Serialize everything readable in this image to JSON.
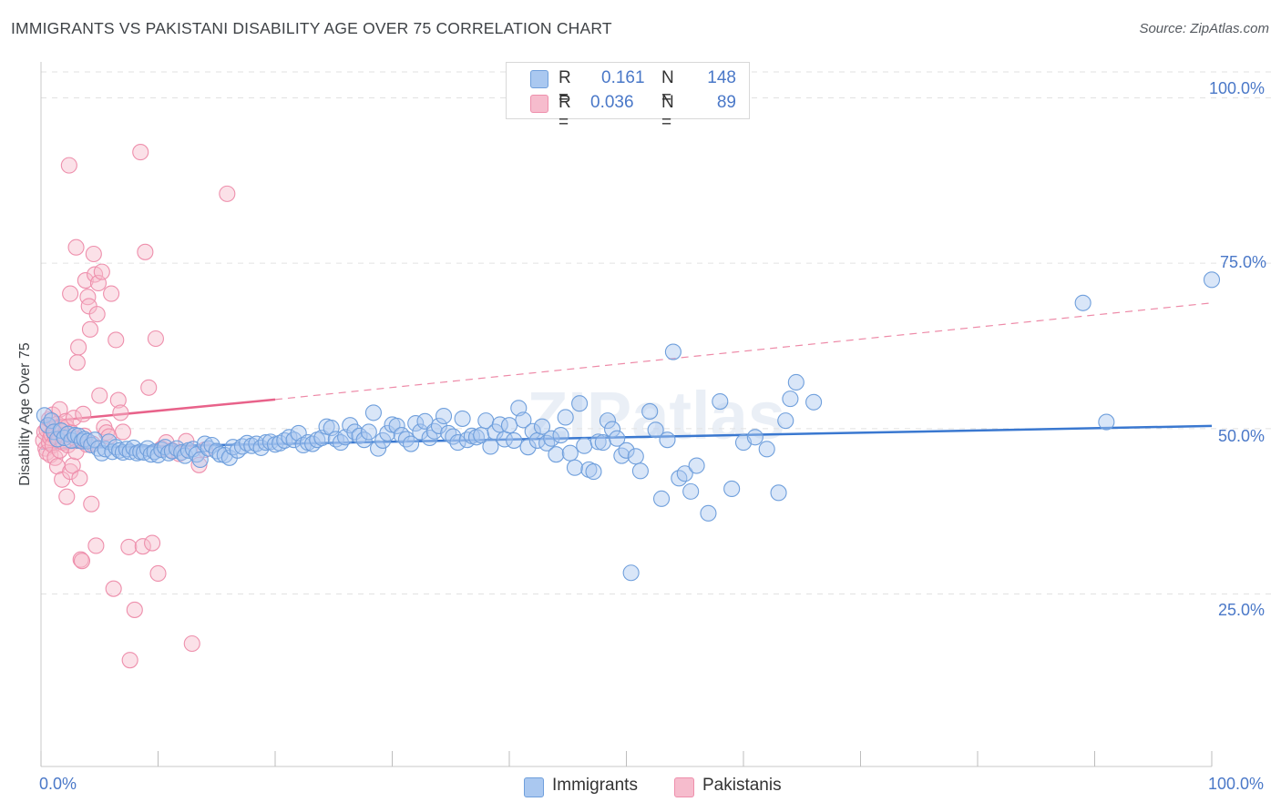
{
  "title": "IMMIGRANTS VS PAKISTANI DISABILITY AGE OVER 75 CORRELATION CHART",
  "source": "Source: ZipAtlas.com",
  "watermark": "ZIPatlas",
  "colors": {
    "immigrants_fill": "#aac8f0",
    "immigrants_stroke": "#6f9fdc",
    "immigrants_line": "#3a78d0",
    "pakistanis_fill": "#f6bccd",
    "pakistanis_stroke": "#ee8fac",
    "pakistanis_line": "#e8628a",
    "tick_text": "#4a78c8",
    "grid": "#e2e2e2"
  },
  "legend": {
    "immigrants": {
      "r_label": "R =",
      "r_value": "0.161",
      "n_label": "N =",
      "n_value": "148"
    },
    "pakistanis": {
      "r_label": "R =",
      "r_value": "0.036",
      "n_label": "N =",
      "n_value": "89"
    }
  },
  "bottom_legend": {
    "immigrants": "Immigrants",
    "pakistanis": "Pakistanis"
  },
  "chart_data": {
    "type": "scatter",
    "title": "IMMIGRANTS VS PAKISTANI DISABILITY AGE OVER 75 CORRELATION CHART",
    "xlabel": "",
    "ylabel": "Disability Age Over 75",
    "xlim": [
      0,
      100
    ],
    "ylim": [
      0,
      105
    ],
    "x_tick_labels": [
      "0.0%",
      "100.0%"
    ],
    "y_tick_labels": [
      "100.0%",
      "75.0%",
      "50.0%",
      "25.0%"
    ],
    "y_ticks": [
      100,
      75,
      50,
      25
    ],
    "grid": "horizontal dashed",
    "legend_position": "top-center",
    "series": [
      {
        "name": "Immigrants",
        "trendline": {
          "x": [
            0,
            100
          ],
          "y": [
            47.0,
            50.4
          ],
          "style": "solid"
        },
        "points": [
          [
            0.3,
            52.0
          ],
          [
            0.6,
            50.5
          ],
          [
            0.9,
            51.2
          ],
          [
            1.1,
            49.5
          ],
          [
            1.4,
            48.4
          ],
          [
            1.7,
            49.7
          ],
          [
            2.0,
            48.6
          ],
          [
            2.3,
            49.2
          ],
          [
            2.6,
            48.2
          ],
          [
            2.9,
            49.0
          ],
          [
            3.2,
            48.9
          ],
          [
            3.5,
            48.1
          ],
          [
            3.7,
            48.4
          ],
          [
            4.0,
            48.1
          ],
          [
            4.3,
            47.5
          ],
          [
            4.6,
            48.3
          ],
          [
            4.9,
            47.0
          ],
          [
            5.2,
            46.3
          ],
          [
            5.5,
            46.9
          ],
          [
            5.8,
            48.0
          ],
          [
            6.1,
            46.5
          ],
          [
            6.4,
            47.2
          ],
          [
            6.7,
            46.7
          ],
          [
            7.0,
            46.4
          ],
          [
            7.3,
            46.9
          ],
          [
            7.6,
            46.5
          ],
          [
            7.9,
            47.1
          ],
          [
            8.2,
            46.3
          ],
          [
            8.5,
            46.5
          ],
          [
            8.8,
            46.4
          ],
          [
            9.1,
            47.0
          ],
          [
            9.4,
            46.1
          ],
          [
            9.7,
            46.5
          ],
          [
            10.0,
            46.0
          ],
          [
            10.3,
            46.8
          ],
          [
            10.6,
            47.2
          ],
          [
            10.9,
            46.3
          ],
          [
            11.2,
            46.6
          ],
          [
            11.6,
            47.0
          ],
          [
            12.0,
            46.4
          ],
          [
            12.3,
            45.9
          ],
          [
            12.6,
            46.7
          ],
          [
            13.0,
            46.9
          ],
          [
            13.3,
            46.1
          ],
          [
            13.6,
            45.3
          ],
          [
            14.0,
            47.7
          ],
          [
            14.3,
            47.0
          ],
          [
            14.6,
            47.5
          ],
          [
            15.0,
            46.6
          ],
          [
            15.3,
            46.1
          ],
          [
            15.7,
            46.0
          ],
          [
            16.1,
            45.6
          ],
          [
            16.4,
            47.2
          ],
          [
            16.8,
            46.7
          ],
          [
            17.2,
            47.3
          ],
          [
            17.6,
            47.8
          ],
          [
            18.0,
            47.4
          ],
          [
            18.4,
            47.7
          ],
          [
            18.8,
            47.1
          ],
          [
            19.2,
            47.9
          ],
          [
            19.6,
            48.0
          ],
          [
            20.0,
            47.6
          ],
          [
            20.4,
            47.8
          ],
          [
            20.8,
            48.2
          ],
          [
            21.2,
            48.7
          ],
          [
            21.6,
            48.3
          ],
          [
            22.0,
            49.3
          ],
          [
            22.4,
            47.5
          ],
          [
            22.8,
            47.9
          ],
          [
            23.2,
            47.7
          ],
          [
            23.6,
            48.3
          ],
          [
            24.0,
            48.6
          ],
          [
            24.4,
            50.3
          ],
          [
            24.8,
            50.1
          ],
          [
            25.2,
            48.4
          ],
          [
            25.6,
            47.9
          ],
          [
            26.0,
            48.7
          ],
          [
            26.4,
            50.5
          ],
          [
            26.8,
            49.5
          ],
          [
            27.2,
            48.9
          ],
          [
            27.6,
            48.3
          ],
          [
            28.0,
            49.5
          ],
          [
            28.4,
            52.4
          ],
          [
            28.8,
            47.0
          ],
          [
            29.2,
            48.2
          ],
          [
            29.6,
            49.3
          ],
          [
            30.0,
            50.6
          ],
          [
            30.4,
            50.4
          ],
          [
            30.8,
            49.0
          ],
          [
            31.2,
            48.4
          ],
          [
            31.6,
            47.7
          ],
          [
            32.0,
            50.8
          ],
          [
            32.4,
            49.5
          ],
          [
            32.8,
            51.1
          ],
          [
            33.2,
            48.6
          ],
          [
            33.6,
            49.6
          ],
          [
            34.0,
            50.4
          ],
          [
            34.4,
            51.9
          ],
          [
            34.8,
            49.3
          ],
          [
            35.2,
            48.8
          ],
          [
            35.6,
            47.9
          ],
          [
            36.0,
            51.5
          ],
          [
            36.4,
            48.3
          ],
          [
            36.8,
            48.9
          ],
          [
            37.2,
            48.7
          ],
          [
            37.6,
            49.0
          ],
          [
            38.0,
            51.2
          ],
          [
            38.4,
            47.3
          ],
          [
            38.8,
            49.5
          ],
          [
            39.2,
            50.6
          ],
          [
            39.6,
            48.4
          ],
          [
            40.0,
            50.5
          ],
          [
            40.4,
            48.2
          ],
          [
            40.8,
            53.1
          ],
          [
            41.2,
            51.3
          ],
          [
            41.6,
            47.2
          ],
          [
            42.0,
            49.6
          ],
          [
            42.4,
            48.2
          ],
          [
            42.8,
            50.3
          ],
          [
            43.2,
            47.8
          ],
          [
            43.6,
            48.5
          ],
          [
            44.0,
            46.1
          ],
          [
            44.4,
            49.0
          ],
          [
            44.8,
            51.7
          ],
          [
            45.2,
            46.3
          ],
          [
            45.6,
            44.1
          ],
          [
            46.0,
            53.8
          ],
          [
            46.4,
            47.4
          ],
          [
            46.8,
            43.8
          ],
          [
            47.2,
            43.5
          ],
          [
            47.6,
            48.0
          ],
          [
            48.0,
            47.9
          ],
          [
            48.4,
            51.2
          ],
          [
            48.8,
            49.9
          ],
          [
            49.2,
            48.5
          ],
          [
            49.6,
            45.9
          ],
          [
            50.0,
            46.7
          ],
          [
            50.4,
            28.2
          ],
          [
            50.8,
            45.8
          ],
          [
            51.2,
            43.6
          ],
          [
            52.0,
            52.6
          ],
          [
            52.5,
            49.8
          ],
          [
            53.0,
            39.4
          ],
          [
            53.5,
            48.3
          ],
          [
            54.0,
            61.6
          ],
          [
            54.5,
            42.5
          ],
          [
            55.0,
            43.2
          ],
          [
            55.5,
            40.5
          ],
          [
            56.0,
            44.4
          ],
          [
            57.0,
            37.2
          ],
          [
            58.0,
            54.1
          ],
          [
            59.0,
            40.9
          ],
          [
            60.0,
            47.9
          ],
          [
            61.0,
            48.7
          ],
          [
            62.0,
            46.9
          ],
          [
            63.0,
            40.3
          ],
          [
            63.6,
            51.2
          ],
          [
            64.0,
            54.5
          ],
          [
            64.5,
            57.0
          ],
          [
            66.0,
            54.0
          ],
          [
            89.0,
            69.0
          ],
          [
            91.0,
            51.0
          ],
          [
            100.0,
            72.5
          ]
        ]
      },
      {
        "name": "Pakistanis",
        "trendline": {
          "x": [
            0,
            20
          ],
          "y": [
            51.0,
            54.4
          ],
          "style": "solid",
          "extrapolated_to": [
            100,
            69.0
          ]
        },
        "points": [
          [
            0.2,
            48.2
          ],
          [
            0.3,
            49.5
          ],
          [
            0.4,
            47.0
          ],
          [
            0.5,
            46.4
          ],
          [
            0.5,
            49.8
          ],
          [
            0.6,
            50.4
          ],
          [
            0.7,
            47.9
          ],
          [
            0.7,
            51.4
          ],
          [
            0.8,
            48.6
          ],
          [
            0.8,
            46.0
          ],
          [
            0.9,
            49.1
          ],
          [
            1.0,
            52.1
          ],
          [
            1.0,
            47.5
          ],
          [
            1.1,
            50.0
          ],
          [
            1.2,
            45.6
          ],
          [
            1.2,
            48.9
          ],
          [
            1.3,
            49.5
          ],
          [
            1.4,
            44.3
          ],
          [
            1.4,
            50.7
          ],
          [
            1.5,
            48.2
          ],
          [
            1.6,
            52.9
          ],
          [
            1.6,
            46.7
          ],
          [
            1.7,
            50.3
          ],
          [
            1.8,
            49.6
          ],
          [
            1.8,
            42.3
          ],
          [
            1.9,
            47.9
          ],
          [
            2.0,
            49.0
          ],
          [
            2.1,
            51.1
          ],
          [
            2.2,
            50.2
          ],
          [
            2.2,
            39.7
          ],
          [
            2.3,
            47.5
          ],
          [
            2.4,
            89.8
          ],
          [
            2.5,
            70.4
          ],
          [
            2.5,
            43.5
          ],
          [
            2.6,
            49.4
          ],
          [
            2.7,
            44.4
          ],
          [
            2.8,
            51.6
          ],
          [
            2.9,
            48.5
          ],
          [
            3.0,
            46.5
          ],
          [
            3.0,
            77.4
          ],
          [
            3.1,
            60.0
          ],
          [
            3.2,
            62.3
          ],
          [
            3.3,
            42.5
          ],
          [
            3.4,
            30.2
          ],
          [
            3.5,
            30.0
          ],
          [
            3.6,
            52.2
          ],
          [
            3.7,
            48.9
          ],
          [
            3.8,
            72.4
          ],
          [
            3.9,
            47.6
          ],
          [
            4.0,
            69.9
          ],
          [
            4.1,
            68.5
          ],
          [
            4.2,
            65.0
          ],
          [
            4.3,
            38.6
          ],
          [
            4.4,
            47.7
          ],
          [
            4.5,
            76.4
          ],
          [
            4.6,
            73.3
          ],
          [
            4.7,
            32.3
          ],
          [
            4.8,
            67.3
          ],
          [
            4.9,
            72.0
          ],
          [
            5.0,
            55.0
          ],
          [
            5.2,
            73.7
          ],
          [
            5.4,
            50.2
          ],
          [
            5.6,
            49.4
          ],
          [
            5.8,
            48.8
          ],
          [
            6.0,
            70.4
          ],
          [
            6.2,
            25.8
          ],
          [
            6.4,
            63.4
          ],
          [
            6.6,
            54.3
          ],
          [
            6.8,
            52.4
          ],
          [
            7.0,
            49.5
          ],
          [
            7.5,
            32.1
          ],
          [
            7.6,
            15.0
          ],
          [
            8.0,
            22.6
          ],
          [
            8.5,
            91.8
          ],
          [
            8.7,
            32.2
          ],
          [
            8.9,
            76.7
          ],
          [
            9.2,
            56.2
          ],
          [
            9.5,
            32.7
          ],
          [
            9.8,
            63.6
          ],
          [
            10.0,
            28.1
          ],
          [
            10.3,
            47.0
          ],
          [
            10.7,
            47.9
          ],
          [
            11.2,
            46.7
          ],
          [
            11.8,
            46.2
          ],
          [
            12.4,
            48.1
          ],
          [
            12.9,
            17.5
          ],
          [
            13.5,
            44.5
          ],
          [
            14.0,
            46.8
          ],
          [
            15.9,
            85.5
          ]
        ]
      }
    ]
  }
}
